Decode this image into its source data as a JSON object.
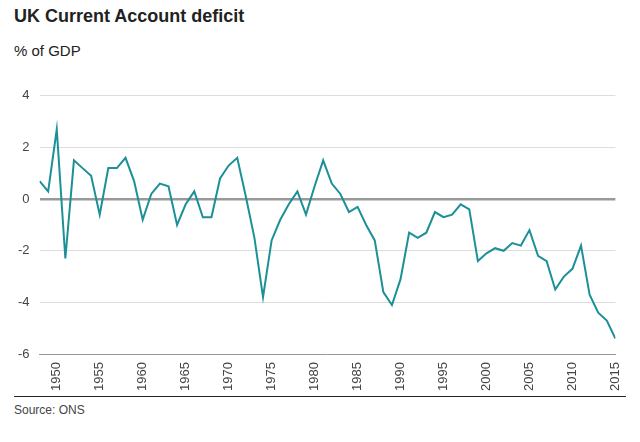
{
  "chart_data": {
    "type": "line",
    "title": "UK Current Account deficit",
    "subtitle": "% of GDP",
    "source": "Source: ONS",
    "x": [
      1948,
      1949,
      1950,
      1951,
      1952,
      1953,
      1954,
      1955,
      1956,
      1957,
      1958,
      1959,
      1960,
      1961,
      1962,
      1963,
      1964,
      1965,
      1966,
      1967,
      1968,
      1969,
      1970,
      1971,
      1972,
      1973,
      1974,
      1975,
      1976,
      1977,
      1978,
      1979,
      1980,
      1981,
      1982,
      1983,
      1984,
      1985,
      1986,
      1987,
      1988,
      1989,
      1990,
      1991,
      1992,
      1993,
      1994,
      1995,
      1996,
      1997,
      1998,
      1999,
      2000,
      2001,
      2002,
      2003,
      2004,
      2005,
      2006,
      2007,
      2008,
      2009,
      2010,
      2011,
      2012,
      2013,
      2014,
      2015
    ],
    "values": [
      0.7,
      0.3,
      2.7,
      -2.3,
      1.5,
      1.2,
      0.9,
      -0.6,
      1.2,
      1.2,
      1.6,
      0.7,
      -0.8,
      0.2,
      0.6,
      0.5,
      -1.0,
      -0.2,
      0.3,
      -0.7,
      -0.7,
      0.8,
      1.3,
      1.6,
      0.1,
      -1.5,
      -3.8,
      -1.6,
      -0.8,
      -0.2,
      0.3,
      -0.6,
      0.5,
      1.5,
      0.6,
      0.2,
      -0.5,
      -0.3,
      -1.0,
      -1.6,
      -3.6,
      -4.1,
      -3.1,
      -1.3,
      -1.5,
      -1.3,
      -0.5,
      -0.7,
      -0.6,
      -0.2,
      -0.4,
      -2.4,
      -2.1,
      -1.9,
      -2.0,
      -1.7,
      -1.8,
      -1.2,
      -2.2,
      -2.4,
      -3.5,
      -3.0,
      -2.7,
      -1.8,
      -3.7,
      -4.4,
      -4.7,
      -5.4
    ],
    "color": "#1b9096",
    "xlim": [
      1948,
      2015
    ],
    "xticks": [
      1950,
      1955,
      1960,
      1965,
      1970,
      1975,
      1980,
      1985,
      1990,
      1995,
      2000,
      2005,
      2010,
      2015
    ],
    "ylim": [
      -6,
      4
    ],
    "yticks": [
      -6,
      -4,
      -2,
      0,
      2,
      4
    ],
    "grid": true
  }
}
